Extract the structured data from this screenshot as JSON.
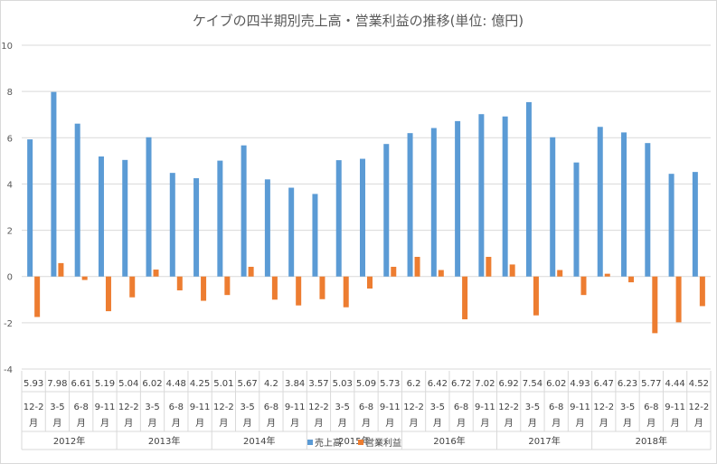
{
  "chart_data": {
    "type": "bar",
    "title": "ケイブの四半期別売上高・営業利益の推移(単位: 億円)",
    "xlabel": "",
    "ylabel": "",
    "ylim": [
      -4,
      10
    ],
    "yticks": [
      -4,
      -2,
      0,
      2,
      4,
      6,
      8,
      10
    ],
    "grid": true,
    "legend_position": "bottom",
    "colors": {
      "sales": "#5b9bd5",
      "profit": "#ed7d31",
      "grid": "#d9d9d9",
      "text": "#595959"
    },
    "categories": [
      "12-2月",
      "3-5月",
      "6-8月",
      "9-11月",
      "12-2月",
      "3-5月",
      "6-8月",
      "9-11月",
      "12-2月",
      "3-5月",
      "6-8月",
      "9-11月",
      "12-2月",
      "3-5月",
      "6-8月",
      "9-11月",
      "12-2月",
      "3-5月",
      "6-8月",
      "9-11月",
      "12-2月",
      "3-5月",
      "6-8月",
      "9-11月",
      "12-2月",
      "3-5月",
      "6-8月",
      "9-11月",
      "12-2月"
    ],
    "quarters": [
      "12-2",
      "3-5",
      "6-8",
      "9-11",
      "12-2",
      "3-5",
      "6-8",
      "9-11",
      "12-2",
      "3-5",
      "6-8",
      "9-11",
      "12-2",
      "3-5",
      "6-8",
      "9-11",
      "12-2",
      "3-5",
      "6-8",
      "9-11",
      "12-2",
      "3-5",
      "6-8",
      "9-11",
      "12-2",
      "3-5",
      "6-8",
      "9-11",
      "12-2"
    ],
    "month_suffix": "月",
    "years": [
      {
        "label": "2012年",
        "count": 4
      },
      {
        "label": "2013年",
        "count": 4
      },
      {
        "label": "2014年",
        "count": 4
      },
      {
        "label": "2015年",
        "count": 4
      },
      {
        "label": "2016年",
        "count": 4
      },
      {
        "label": "2017年",
        "count": 4
      },
      {
        "label": "2018年",
        "count": 5
      }
    ],
    "series": [
      {
        "name": "売上高",
        "values": [
          5.93,
          7.98,
          6.61,
          5.19,
          5.04,
          6.02,
          4.48,
          4.25,
          5.01,
          5.67,
          4.2,
          3.84,
          3.57,
          5.03,
          5.09,
          5.73,
          6.2,
          6.42,
          6.72,
          7.02,
          6.92,
          7.54,
          6.02,
          4.93,
          6.47,
          6.23,
          5.77,
          4.44,
          4.52
        ]
      },
      {
        "name": "営業利益",
        "values": [
          -1.75,
          0.58,
          -0.15,
          -1.5,
          -0.9,
          0.3,
          -0.6,
          -1.05,
          -0.8,
          0.42,
          -1.0,
          -1.25,
          -0.98,
          -1.33,
          -0.52,
          0.42,
          0.85,
          0.28,
          -1.85,
          0.85,
          0.52,
          -1.68,
          0.28,
          -0.8,
          0.12,
          -0.25,
          -2.45,
          -1.98,
          -1.28
        ]
      }
    ]
  }
}
